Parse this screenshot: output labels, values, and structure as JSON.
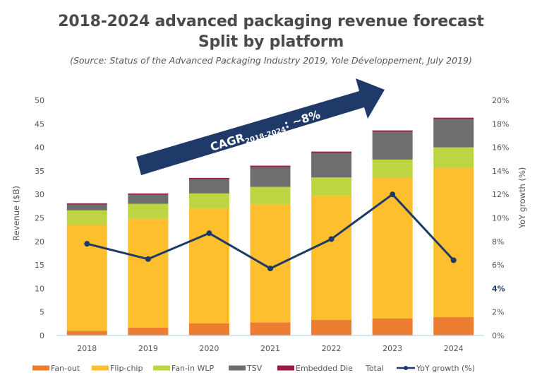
{
  "title_line1": "2018-2024 advanced packaging revenue forecast",
  "title_line2": "Split by platform",
  "source": "(Source: Status of the Advanced Packaging Industry 2019, Yole Développement, July 2019)",
  "annotation": {
    "cagr_prefix": "CAGR",
    "cagr_sub": "2018-2024",
    "cagr_value": ": ~8%",
    "arrow_color": "#1f3a68"
  },
  "chart_data": {
    "type": "bar",
    "stacked": true,
    "title": "2018-2024 advanced packaging revenue forecast - Split by platform",
    "categories": [
      "2018",
      "2019",
      "2020",
      "2021",
      "2022",
      "2023",
      "2024"
    ],
    "series": [
      {
        "name": "Fan-out",
        "color": "#ed7d31",
        "values": [
          1.0,
          1.7,
          2.6,
          2.8,
          3.3,
          3.6,
          3.9
        ]
      },
      {
        "name": "Flip-chip",
        "color": "#fdbf2d",
        "values": [
          22.5,
          23.1,
          24.3,
          25.1,
          26.4,
          29.9,
          31.7
        ]
      },
      {
        "name": "Fan-in WLP",
        "color": "#bfd443",
        "values": [
          3.1,
          3.2,
          3.3,
          3.7,
          3.9,
          3.9,
          4.4
        ]
      },
      {
        "name": "TSV",
        "color": "#6e6e6e",
        "values": [
          1.2,
          1.9,
          3.0,
          4.2,
          5.2,
          5.9,
          6.0
        ]
      },
      {
        "name": "Embedded Die",
        "color": "#9b1b48",
        "values": [
          0.3,
          0.3,
          0.3,
          0.3,
          0.3,
          0.3,
          0.3
        ]
      }
    ],
    "total_label": "Total",
    "totals": [
      28.1,
      30.2,
      33.5,
      36.1,
      39.1,
      43.6,
      46.3
    ],
    "line_series": {
      "name": "YoY growth (%)",
      "color": "#1f3a68",
      "axis": "right",
      "values": [
        7.8,
        6.5,
        8.7,
        5.7,
        8.2,
        12.0,
        6.4
      ]
    },
    "ylabel": "Revenue ($B)",
    "ylim": [
      0,
      50
    ],
    "yticks": [
      "0",
      "5",
      "10",
      "15",
      "20",
      "25",
      "30",
      "35",
      "40",
      "45",
      "50"
    ],
    "y2label": "YoY growth (%)",
    "y2lim": [
      0,
      20
    ],
    "y2ticks": [
      "0%",
      "2%",
      "4%",
      "6%",
      "8%",
      "10%",
      "12%",
      "14%",
      "16%",
      "18%",
      "20%"
    ],
    "y2tick_highlight": "4%",
    "xlabel": "",
    "grid": false,
    "legend_position": "bottom"
  }
}
